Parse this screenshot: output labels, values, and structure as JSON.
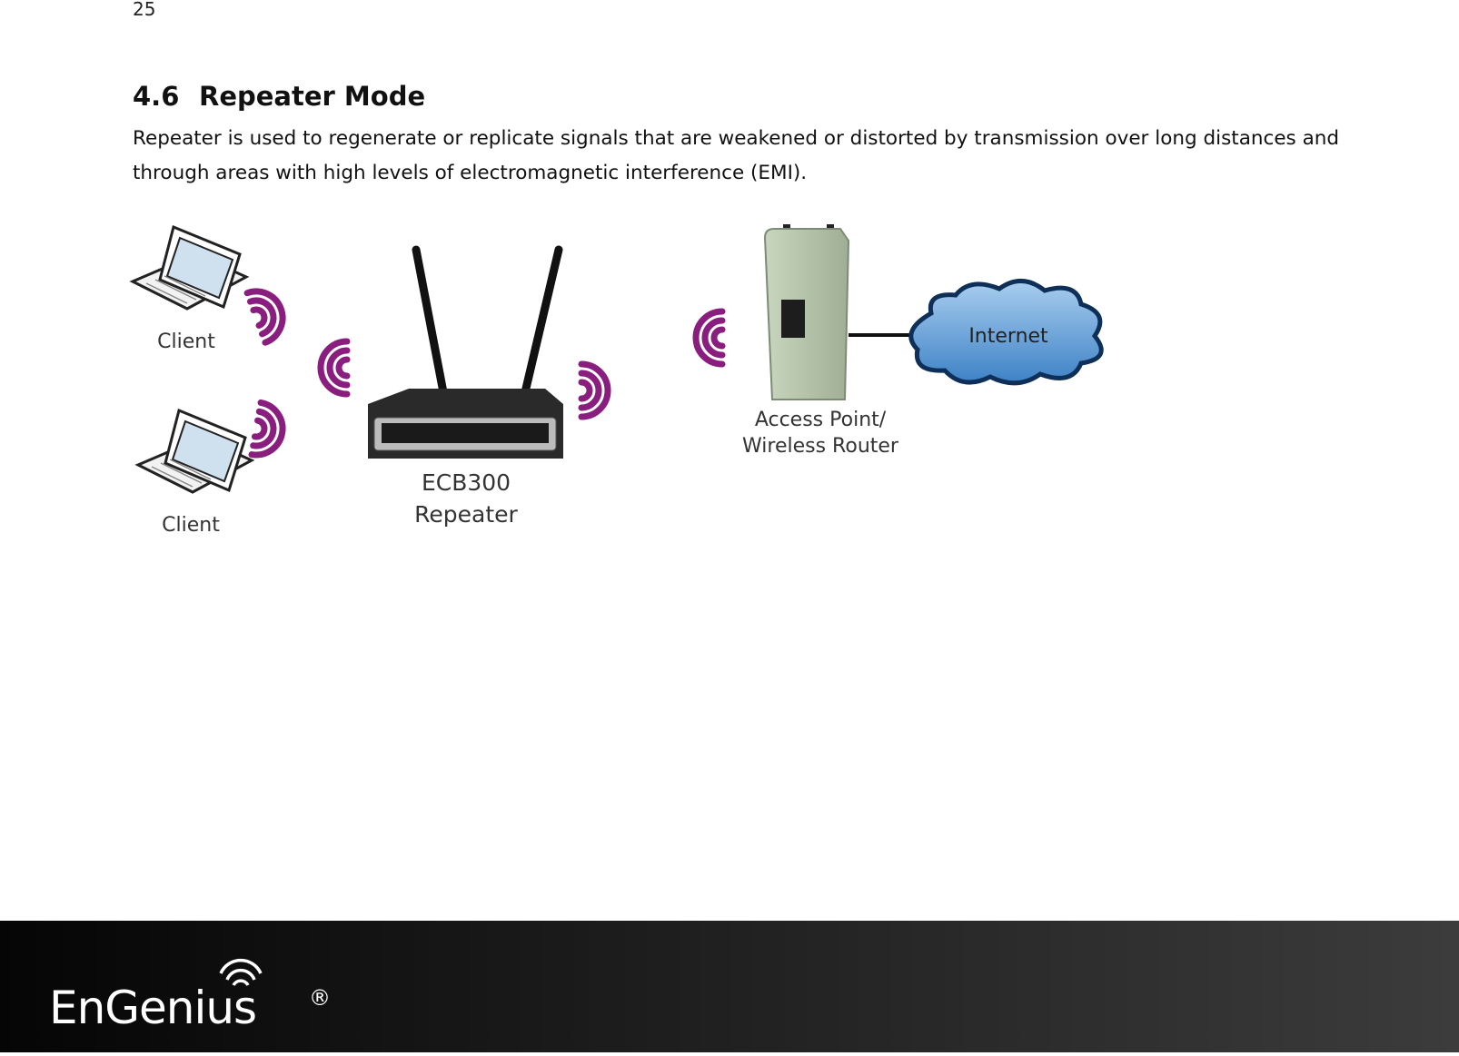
{
  "page_number": "25",
  "section": {
    "number": "4.6",
    "title": "Repeater Mode",
    "body_lines": [
      "Repeater is used to regenerate or replicate signals that are weakened or distorted by transmission over long distances and",
      "through areas with high levels of electromagnetic interference (EMI)."
    ]
  },
  "diagram": {
    "client_1": "Client",
    "client_2": "Client",
    "repeater_model": "ECB300",
    "repeater_role": "Repeater",
    "ap_line_1": "Access Point/",
    "ap_line_2": "Wireless Router",
    "internet": "Internet"
  },
  "footer": {
    "logo": "EnGenius",
    "mark": "®"
  }
}
